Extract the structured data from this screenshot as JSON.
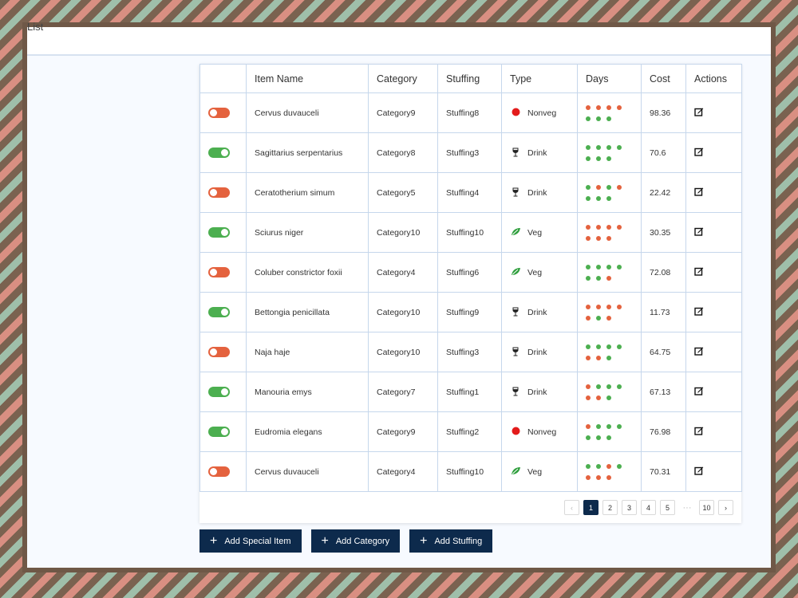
{
  "window": {
    "title": "List"
  },
  "table": {
    "headers": [
      "",
      "Item Name",
      "Category",
      "Stuffing",
      "Type",
      "Days",
      "Cost",
      "Actions"
    ],
    "rows": [
      {
        "enabled": false,
        "name": "Cervus duvauceli",
        "category": "Category9",
        "stuffing": "Stuffing8",
        "type": "Nonveg",
        "type_icon": "red-dot-icon",
        "days": [
          "r",
          "r",
          "r",
          "r",
          "g",
          "g",
          "g"
        ],
        "cost": "98.36"
      },
      {
        "enabled": true,
        "name": "Sagittarius serpentarius",
        "category": "Category8",
        "stuffing": "Stuffing3",
        "type": "Drink",
        "type_icon": "wine-glass-icon",
        "days": [
          "g",
          "g",
          "g",
          "g",
          "g",
          "g",
          "g"
        ],
        "cost": "70.6"
      },
      {
        "enabled": false,
        "name": "Ceratotherium simum",
        "category": "Category5",
        "stuffing": "Stuffing4",
        "type": "Drink",
        "type_icon": "wine-glass-icon",
        "days": [
          "g",
          "r",
          "g",
          "r",
          "g",
          "g",
          "g"
        ],
        "cost": "22.42"
      },
      {
        "enabled": true,
        "name": "Sciurus niger",
        "category": "Category10",
        "stuffing": "Stuffing10",
        "type": "Veg",
        "type_icon": "leaf-icon",
        "days": [
          "r",
          "r",
          "r",
          "r",
          "r",
          "r",
          "r"
        ],
        "cost": "30.35"
      },
      {
        "enabled": false,
        "name": "Coluber constrictor foxii",
        "category": "Category4",
        "stuffing": "Stuffing6",
        "type": "Veg",
        "type_icon": "leaf-icon",
        "days": [
          "g",
          "g",
          "g",
          "g",
          "g",
          "g",
          "r"
        ],
        "cost": "72.08"
      },
      {
        "enabled": true,
        "name": "Bettongia penicillata",
        "category": "Category10",
        "stuffing": "Stuffing9",
        "type": "Drink",
        "type_icon": "wine-glass-icon",
        "days": [
          "r",
          "r",
          "r",
          "r",
          "r",
          "g",
          "r"
        ],
        "cost": "11.73"
      },
      {
        "enabled": false,
        "name": "Naja haje",
        "category": "Category10",
        "stuffing": "Stuffing3",
        "type": "Drink",
        "type_icon": "wine-glass-icon",
        "days": [
          "g",
          "g",
          "g",
          "g",
          "r",
          "r",
          "g"
        ],
        "cost": "64.75"
      },
      {
        "enabled": true,
        "name": "Manouria emys",
        "category": "Category7",
        "stuffing": "Stuffing1",
        "type": "Drink",
        "type_icon": "wine-glass-icon",
        "days": [
          "r",
          "g",
          "g",
          "g",
          "r",
          "r",
          "g"
        ],
        "cost": "67.13"
      },
      {
        "enabled": true,
        "name": "Eudromia elegans",
        "category": "Category9",
        "stuffing": "Stuffing2",
        "type": "Nonveg",
        "type_icon": "red-dot-icon",
        "days": [
          "r",
          "g",
          "g",
          "g",
          "g",
          "g",
          "g"
        ],
        "cost": "76.98"
      },
      {
        "enabled": false,
        "name": "Cervus duvauceli",
        "category": "Category4",
        "stuffing": "Stuffing10",
        "type": "Veg",
        "type_icon": "leaf-icon",
        "days": [
          "g",
          "g",
          "r",
          "g",
          "r",
          "r",
          "r"
        ],
        "cost": "70.31"
      }
    ]
  },
  "pagination": {
    "prev": "‹",
    "pages": [
      "1",
      "2",
      "3",
      "4",
      "5"
    ],
    "current": "1",
    "ellipsis": "···",
    "last": "10",
    "next": "›"
  },
  "actions": {
    "add_special_item": "Add Special Item",
    "add_category": "Add Category",
    "add_stuffing": "Add Stuffing",
    "plus": "+"
  },
  "colors": {
    "primary": "#0d2a4c",
    "toggle_on": "#4caf50",
    "toggle_off": "#e4623e",
    "day_green": "#4caf50",
    "day_red": "#e4623e",
    "nonveg": "#e31b1b",
    "veg": "#2e9e3c"
  }
}
